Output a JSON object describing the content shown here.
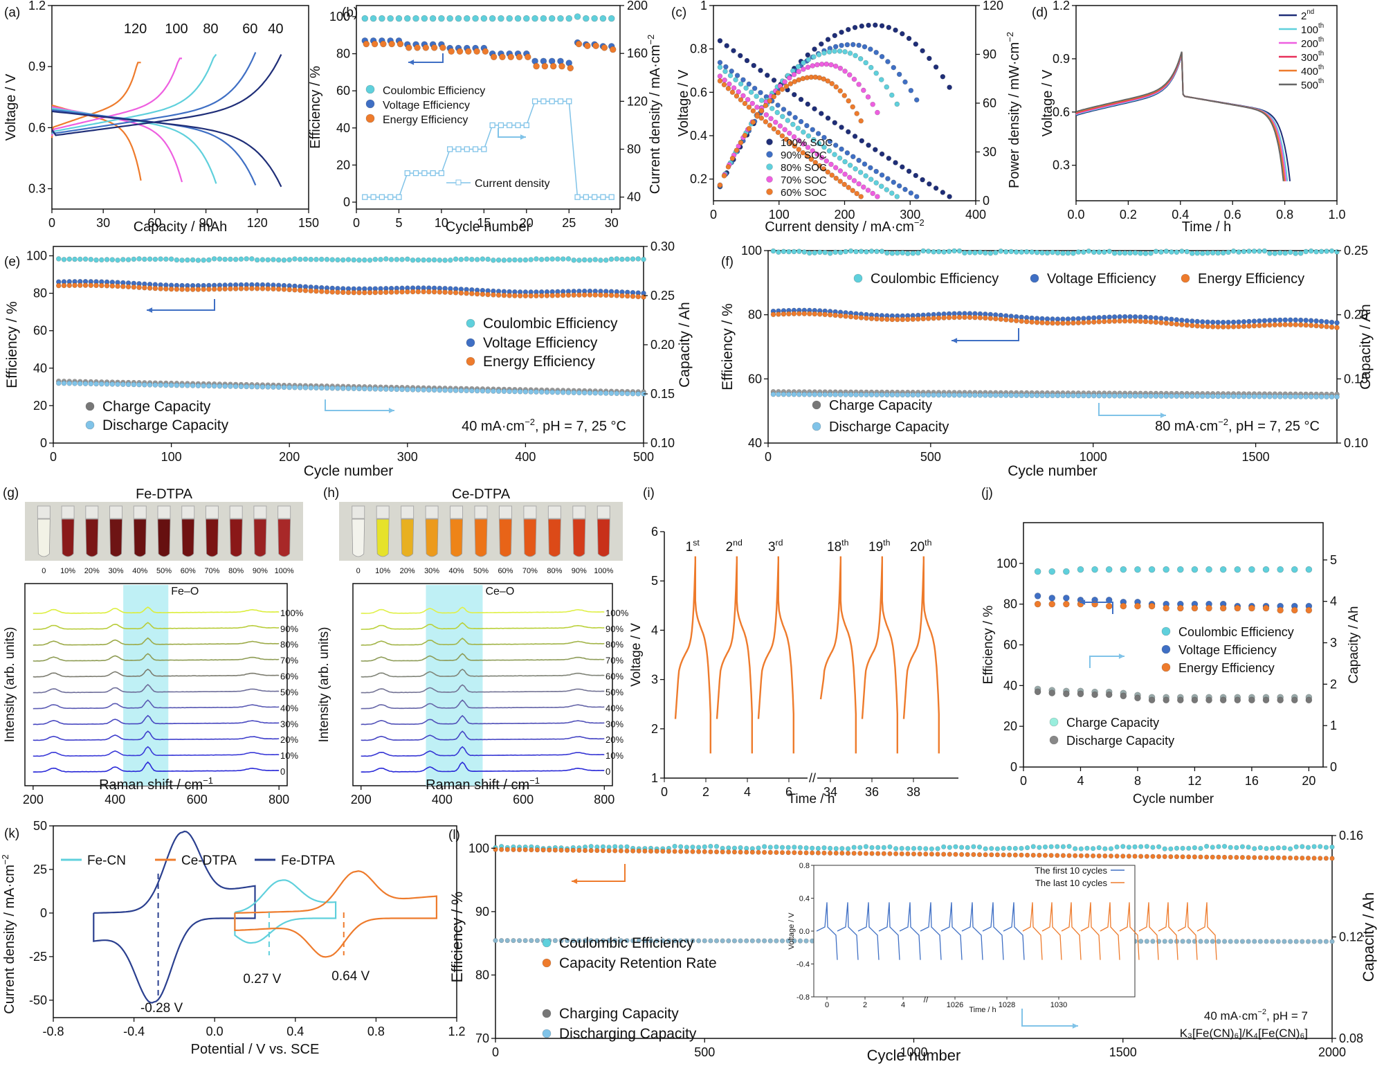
{
  "colors": {
    "orange": "#ee7b2c",
    "darkblue": "#1f2e78",
    "navy": "#2a3f8f",
    "blue": "#3f6fc4",
    "cyan": "#5fd0dc",
    "skyblue": "#80c3e8",
    "magenta": "#ee5fe0",
    "gray": "#777777",
    "lightcyan": "#bff0f5"
  },
  "chart_data": [
    {
      "id": "a",
      "type": "line",
      "panel_label": "(a)",
      "xlabel": "Capacity / mAh",
      "ylabel": "Voltage / V",
      "xlim": [
        0,
        150
      ],
      "ylim": [
        0.2,
        1.2
      ],
      "xticks": [
        0,
        30,
        60,
        90,
        120,
        150
      ],
      "yticks": [
        0.3,
        0.6,
        0.9,
        1.2
      ],
      "series": [
        {
          "name": "120",
          "color": "#ee7b2c",
          "capacity": 52
        },
        {
          "name": "100",
          "color": "#ee5fe0",
          "capacity": 76
        },
        {
          "name": "80",
          "color": "#5fd0dc",
          "capacity": 96
        },
        {
          "name": "60",
          "color": "#3f6fc4",
          "capacity": 119
        },
        {
          "name": "40",
          "color": "#1f2e78",
          "capacity": 134
        }
      ]
    },
    {
      "id": "b",
      "type": "scatter",
      "panel_label": "(b)",
      "xlabel": "Cycle number",
      "ylabel": "Efficiency / %",
      "y2label": "Current density / mA·cm⁻²",
      "xlim": [
        0,
        31
      ],
      "ylim": [
        0,
        100
      ],
      "y2lim": [
        30,
        200
      ],
      "xticks": [
        0,
        5,
        10,
        15,
        20,
        25,
        30
      ],
      "yticks": [
        0,
        20,
        40,
        60,
        80,
        100
      ],
      "y2ticks": [
        40,
        80,
        120,
        160,
        200
      ],
      "legend": [
        "Coulombic Efficiency",
        "Voltage Efficiency",
        "Energy Efficiency"
      ],
      "series2_label": "Current density",
      "ce": [
        99,
        99,
        99,
        99,
        99,
        99,
        99,
        99,
        99,
        99,
        99,
        99,
        99,
        99,
        99,
        99,
        99,
        99,
        99,
        99,
        99,
        99,
        99,
        99,
        99,
        100,
        99,
        99,
        99,
        99
      ],
      "ve": [
        87,
        87,
        87,
        87,
        87,
        85,
        85,
        85,
        85,
        85,
        83,
        83,
        83,
        83,
        83,
        80,
        80,
        80,
        80,
        80,
        76,
        76,
        76,
        76,
        75,
        86,
        85,
        85,
        84,
        84
      ],
      "ee": [
        86,
        86,
        86,
        86,
        86,
        84,
        84,
        84,
        84,
        84,
        82,
        82,
        82,
        82,
        82,
        79,
        79,
        79,
        79,
        79,
        74,
        74,
        74,
        74,
        73,
        86,
        85,
        85,
        84,
        83
      ],
      "current": [
        40,
        40,
        40,
        40,
        40,
        60,
        60,
        60,
        60,
        60,
        80,
        80,
        80,
        80,
        80,
        100,
        100,
        100,
        100,
        100,
        120,
        120,
        120,
        120,
        120,
        40,
        40,
        40,
        40,
        40
      ]
    },
    {
      "id": "c",
      "type": "scatter",
      "panel_label": "(c)",
      "xlabel": "Current density / mA·cm⁻²",
      "ylabel": "Voltage / V",
      "y2label": "Power density / mW·cm⁻²",
      "xlim": [
        0,
        400
      ],
      "ylim": [
        0.1,
        1.0
      ],
      "y2lim": [
        0,
        120
      ],
      "xticks": [
        0,
        100,
        200,
        300,
        400
      ],
      "yticks": [
        0.2,
        0.4,
        0.6,
        0.8,
        1.0
      ],
      "y2ticks": [
        0,
        30,
        60,
        90,
        120
      ],
      "series": [
        {
          "name": "100% SOC",
          "color": "#1f2e78",
          "ocv": 0.86,
          "imax": 360,
          "pmax": 108
        },
        {
          "name": "90% SOC",
          "color": "#3f6fc4",
          "ocv": 0.76,
          "imax": 310,
          "pmax": 96
        },
        {
          "name": "80% SOC",
          "color": "#5fd0dc",
          "ocv": 0.74,
          "imax": 280,
          "pmax": 92
        },
        {
          "name": "70% SOC",
          "color": "#ee5fe0",
          "ocv": 0.7,
          "imax": 250,
          "pmax": 84
        },
        {
          "name": "60% SOC",
          "color": "#ee7b2c",
          "ocv": 0.68,
          "imax": 225,
          "pmax": 76
        }
      ]
    },
    {
      "id": "d",
      "type": "line",
      "panel_label": "(d)",
      "xlabel": "Time / h",
      "ylabel": "Voltage / V",
      "xlim": [
        0,
        1.0
      ],
      "ylim": [
        0.1,
        1.2
      ],
      "xticks": [
        0.0,
        0.2,
        0.4,
        0.6,
        0.8,
        1.0
      ],
      "yticks": [
        0.3,
        0.6,
        0.9,
        1.2
      ],
      "series": [
        {
          "name": "2",
          "sup": "nd",
          "color": "#1f2e78",
          "tend": 0.82
        },
        {
          "name": "100",
          "sup": "th",
          "color": "#5fd0dc",
          "tend": 0.81
        },
        {
          "name": "200",
          "sup": "th",
          "color": "#ee5fe0",
          "tend": 0.805
        },
        {
          "name": "300",
          "sup": "th",
          "color": "#e8305a",
          "tend": 0.8
        },
        {
          "name": "400",
          "sup": "th",
          "color": "#ee7b2c",
          "tend": 0.8
        },
        {
          "name": "500",
          "sup": "th",
          "color": "#666666",
          "tend": 0.795
        }
      ]
    },
    {
      "id": "e",
      "type": "scatter",
      "panel_label": "(e)",
      "xlabel": "Cycle number",
      "ylabel": "Efficiency / %",
      "y2label": "Capacity / Ah",
      "xlim": [
        0,
        500
      ],
      "ylim": [
        0,
        105
      ],
      "y2lim": [
        0.1,
        0.3
      ],
      "xticks": [
        0,
        100,
        200,
        300,
        400,
        500
      ],
      "yticks": [
        0,
        10,
        20,
        30,
        40,
        50,
        60,
        70,
        80,
        90,
        100
      ],
      "y2ticks": [
        0.1,
        0.15,
        0.2,
        0.25,
        0.3
      ],
      "legend": [
        "Coulombic Efficiency",
        "Voltage Efficiency",
        "Energy Efficiency",
        "Charge Capacity",
        "Discharge Capacity"
      ],
      "condition_a": "40 mA·cm",
      "condition_b": ", pH = 7, 25 °C",
      "ce": 98,
      "ve_start": 86,
      "ve_end": 80,
      "ee_start": 84,
      "ee_end": 78,
      "cap_start": 0.163,
      "cap_end": 0.152
    },
    {
      "id": "f",
      "type": "scatter",
      "panel_label": "(f)",
      "xlabel": "Cycle number",
      "ylabel": "Efficiency / %",
      "y2label": "Capacity / Ah",
      "xlim": [
        0,
        1750
      ],
      "ylim": [
        40,
        100
      ],
      "y2lim": [
        0.1,
        0.25
      ],
      "xticks": [
        0,
        500,
        1000,
        1500
      ],
      "yticks": [
        40,
        60,
        80,
        100
      ],
      "y2ticks": [
        0.1,
        0.15,
        0.2,
        0.25
      ],
      "legend": [
        "Coulombic Efficiency",
        "Voltage Efficiency",
        "Energy Efficiency",
        "Charge Capacity",
        "Discharge Capacity"
      ],
      "condition_a": "80 mA·cm",
      "condition_b": ", pH = 7, 25 °C",
      "ce": 99.5,
      "ve_start": 81,
      "ve_end": 77.5,
      "ee_start": 80,
      "ee_end": 76,
      "cap_start": 0.14,
      "cap_end": 0.138
    },
    {
      "id": "g",
      "type": "line",
      "panel_label": "(g)",
      "title": "Fe-DTPA",
      "xlabel": "Raman shift / cm",
      "ylabel": "Intensity (arb. units)",
      "xlim": [
        180,
        820
      ],
      "xticks": [
        200,
        400,
        600,
        800
      ],
      "band_label": "Fe–O",
      "band": [
        420,
        530
      ],
      "peak": 480,
      "levels": [
        "0",
        "10%",
        "20%",
        "30%",
        "40%",
        "50%",
        "60%",
        "70%",
        "80%",
        "90%",
        "100%"
      ],
      "vial_labels": [
        "0",
        "10%",
        "20%",
        "30%",
        "40%",
        "50%",
        "60%",
        "70%",
        "80%",
        "90%",
        "100%"
      ]
    },
    {
      "id": "h",
      "type": "line",
      "panel_label": "(h)",
      "title": "Ce-DTPA",
      "xlabel": "Raman shift / cm",
      "ylabel": "Intensity (arb. units)",
      "xlim": [
        180,
        820
      ],
      "xticks": [
        200,
        400,
        600,
        800
      ],
      "band_label": "Ce–O",
      "band": [
        360,
        500
      ],
      "peak": 450,
      "levels": [
        "0",
        "10%",
        "20%",
        "30%",
        "40%",
        "50%",
        "60%",
        "70%",
        "80%",
        "90%",
        "100%"
      ],
      "vial_labels": [
        "0",
        "10%",
        "20%",
        "30%",
        "40%",
        "50%",
        "60%",
        "70%",
        "80%",
        "90%",
        "100%"
      ]
    },
    {
      "id": "i",
      "type": "line",
      "panel_label": "(i)",
      "xlabel": "Time / h",
      "ylabel": "Voltage / V",
      "ylim": [
        1,
        6
      ],
      "yticks": [
        1,
        2,
        3,
        4,
        5,
        6
      ],
      "xticks": [
        "0",
        "2",
        "4",
        "6",
        "34",
        "36",
        "38"
      ],
      "cycle_labels": [
        {
          "n": "1",
          "s": "st"
        },
        {
          "n": "2",
          "s": "nd"
        },
        {
          "n": "3",
          "s": "rd"
        },
        {
          "n": "18",
          "s": "th"
        },
        {
          "n": "19",
          "s": "th"
        },
        {
          "n": "20",
          "s": "th"
        }
      ],
      "vmax": 5.5,
      "vmin": 1.5
    },
    {
      "id": "j",
      "type": "scatter",
      "panel_label": "(j)",
      "xlabel": "Cycle number",
      "ylabel": "Efficiency / %",
      "y2label": "Capacity / Ah",
      "xlim": [
        0,
        21
      ],
      "ylim": [
        0,
        120
      ],
      "y2lim": [
        0,
        5.9
      ],
      "xticks": [
        0,
        4,
        8,
        12,
        16,
        20
      ],
      "yticks": [
        0,
        20,
        40,
        60,
        80,
        100
      ],
      "y2ticks": [
        0,
        1,
        2,
        3,
        4,
        5
      ],
      "legend": [
        "Coulombic Efficiency",
        "Voltage Efficiency",
        "Energy Efficiency",
        "Charge Capacity",
        "Discharge Capacity"
      ],
      "ce": [
        96,
        96,
        96,
        97,
        97,
        97,
        97,
        97,
        97,
        97,
        97,
        97,
        97,
        97,
        97,
        97,
        97,
        97,
        97,
        97
      ],
      "ve": [
        84,
        83,
        83,
        82,
        82,
        82,
        81,
        81,
        80,
        80,
        80,
        80,
        80,
        80,
        79,
        79,
        79,
        79,
        79,
        79
      ],
      "ee": [
        80,
        80,
        80,
        80,
        80,
        79,
        79,
        79,
        79,
        78,
        78,
        78,
        78,
        78,
        78,
        78,
        78,
        77,
        77,
        77
      ],
      "cap": [
        1.85,
        1.82,
        1.8,
        1.8,
        1.78,
        1.78,
        1.75,
        1.7,
        1.65,
        1.65,
        1.65,
        1.65,
        1.65,
        1.65,
        1.65,
        1.65,
        1.65,
        1.65,
        1.65,
        1.65
      ]
    },
    {
      "id": "k",
      "type": "line",
      "panel_label": "(k)",
      "xlabel": "Potential / V vs. SCE",
      "ylabel": "Current density / mA·cm",
      "xlim": [
        -0.8,
        1.2
      ],
      "ylim": [
        -60,
        50
      ],
      "xticks": [
        "-0.8",
        "-0.4",
        "0.0",
        "0.4",
        "0.8",
        "1.2"
      ],
      "xtickvals": [
        -0.8,
        -0.4,
        0.0,
        0.4,
        0.8,
        1.2
      ],
      "yticks": [
        -50,
        -25,
        0,
        25,
        50
      ],
      "legend": [
        "Fe-CN",
        "Ce-DTPA",
        "Fe-DTPA"
      ],
      "e_half": [
        {
          "label": "0.27 V",
          "value": 0.27,
          "color": "#5fd0dc"
        },
        {
          "label": "0.64 V",
          "value": 0.64,
          "color": "#ee7b2c"
        },
        {
          "label": "-0.28 V",
          "value": -0.28,
          "color": "#2a3f8f"
        }
      ]
    },
    {
      "id": "l",
      "type": "scatter",
      "panel_label": "(l)",
      "xlabel": "Cycle number",
      "ylabel": "Efficiency / %",
      "y2label": "Capacity / Ah",
      "xlim": [
        0,
        2000
      ],
      "ylim": [
        70,
        102
      ],
      "y2lim": [
        0.08,
        0.16
      ],
      "xticks": [
        0,
        500,
        1000,
        1500,
        2000
      ],
      "yticks": [
        70,
        80,
        90,
        100
      ],
      "y2ticks": [
        0.08,
        0.12,
        0.16
      ],
      "legend": [
        "Coulombic Efficiency",
        "Capacity Retention Rate",
        "Charging Capacity",
        "Discharging Capacity"
      ],
      "condition": [
        "40 mA·cm",
        "−2",
        "-2",
        ", pH = 7"
      ],
      "condition2": "K₃[Fe(CN)₆]/K₄[Fe(CN)₆]",
      "inset": {
        "ylabel": "Voltage / V",
        "xlabel": "Time / h",
        "yticks": [
          "0.8",
          "0.4",
          "0.0",
          "-0.4",
          "-0.8"
        ],
        "xticks": [
          "0",
          "2",
          "4",
          "1026",
          "1028",
          "1030"
        ],
        "legend": [
          "The first 10 cycles",
          "The last 10 cycles"
        ]
      }
    }
  ]
}
